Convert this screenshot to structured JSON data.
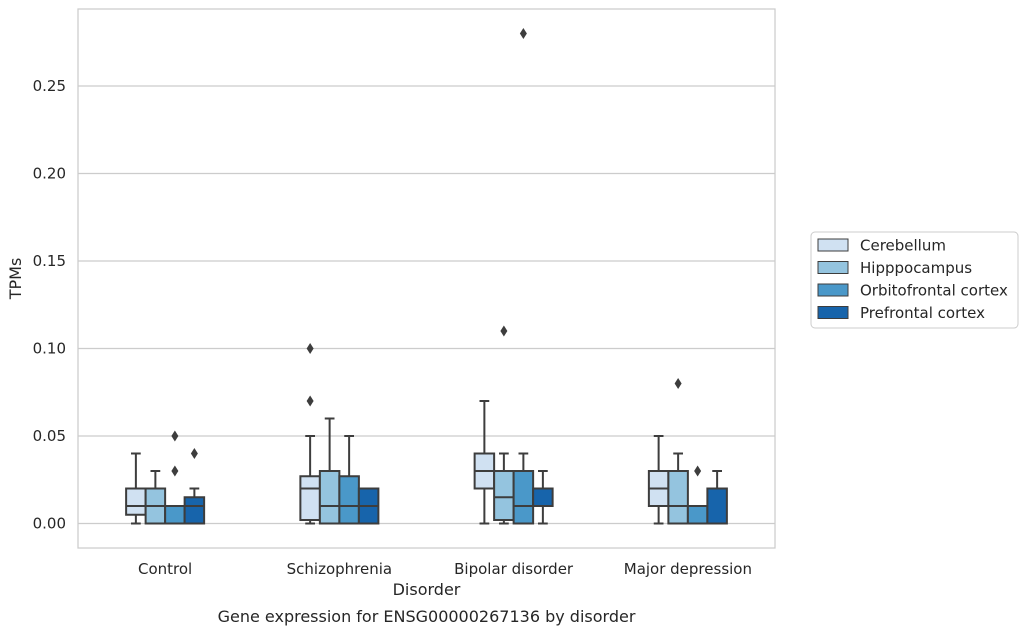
{
  "chart_data": {
    "type": "box",
    "xlabel": "Disorder",
    "ylabel": "TPMs",
    "caption": "Gene expression for ENSG00000267136 by disorder",
    "ylim": [
      -0.014,
      0.294
    ],
    "yticks": [
      0.0,
      0.05,
      0.1,
      0.15,
      0.2,
      0.25
    ],
    "ytick_labels": [
      "0.00",
      "0.05",
      "0.10",
      "0.15",
      "0.20",
      "0.25"
    ],
    "grid": true,
    "legend_position": "right",
    "categories": [
      "Control",
      "Schizophrenia",
      "Bipolar disorder",
      "Major depression"
    ],
    "series": [
      {
        "name": "Cerebellum",
        "color": "#d0e1f2",
        "boxes": [
          {
            "whislo": 0.0,
            "q1": 0.005,
            "med": 0.01,
            "q3": 0.02,
            "whishi": 0.04,
            "fliers": []
          },
          {
            "whislo": 0.0,
            "q1": 0.002,
            "med": 0.02,
            "q3": 0.027,
            "whishi": 0.05,
            "fliers": [
              0.07,
              0.1
            ]
          },
          {
            "whislo": 0.0,
            "q1": 0.02,
            "med": 0.03,
            "q3": 0.04,
            "whishi": 0.07,
            "fliers": []
          },
          {
            "whislo": 0.0,
            "q1": 0.01,
            "med": 0.02,
            "q3": 0.03,
            "whishi": 0.05,
            "fliers": []
          }
        ]
      },
      {
        "name": "Hipppocampus",
        "color": "#94c4df",
        "boxes": [
          {
            "whislo": 0.0,
            "q1": 0.0,
            "med": 0.01,
            "q3": 0.02,
            "whishi": 0.03,
            "fliers": []
          },
          {
            "whislo": 0.0,
            "q1": 0.0,
            "med": 0.01,
            "q3": 0.03,
            "whishi": 0.06,
            "fliers": []
          },
          {
            "whislo": 0.0,
            "q1": 0.002,
            "med": 0.015,
            "q3": 0.03,
            "whishi": 0.04,
            "fliers": [
              0.11
            ]
          },
          {
            "whislo": 0.0,
            "q1": 0.0,
            "med": 0.01,
            "q3": 0.03,
            "whishi": 0.04,
            "fliers": [
              0.08
            ]
          }
        ]
      },
      {
        "name": "Orbitofrontal cortex",
        "color": "#4a98c9",
        "boxes": [
          {
            "whislo": 0.0,
            "q1": 0.0,
            "med": 0.0,
            "q3": 0.01,
            "whishi": 0.01,
            "fliers": [
              0.03,
              0.05
            ]
          },
          {
            "whislo": 0.0,
            "q1": 0.0,
            "med": 0.01,
            "q3": 0.027,
            "whishi": 0.05,
            "fliers": []
          },
          {
            "whislo": 0.0,
            "q1": 0.0,
            "med": 0.01,
            "q3": 0.03,
            "whishi": 0.04,
            "fliers": [
              0.28
            ]
          },
          {
            "whislo": 0.0,
            "q1": 0.0,
            "med": 0.0,
            "q3": 0.01,
            "whishi": 0.01,
            "fliers": [
              0.03
            ]
          }
        ]
      },
      {
        "name": "Prefrontal cortex",
        "color": "#1764ab",
        "boxes": [
          {
            "whislo": 0.0,
            "q1": 0.0,
            "med": 0.01,
            "q3": 0.015,
            "whishi": 0.02,
            "fliers": [
              0.04
            ]
          },
          {
            "whislo": 0.0,
            "q1": 0.0,
            "med": 0.01,
            "q3": 0.02,
            "whishi": 0.02,
            "fliers": []
          },
          {
            "whislo": 0.0,
            "q1": 0.01,
            "med": 0.02,
            "q3": 0.02,
            "whishi": 0.03,
            "fliers": []
          },
          {
            "whislo": 0.0,
            "q1": 0.0,
            "med": 0.0,
            "q3": 0.02,
            "whishi": 0.03,
            "fliers": []
          }
        ]
      }
    ]
  }
}
